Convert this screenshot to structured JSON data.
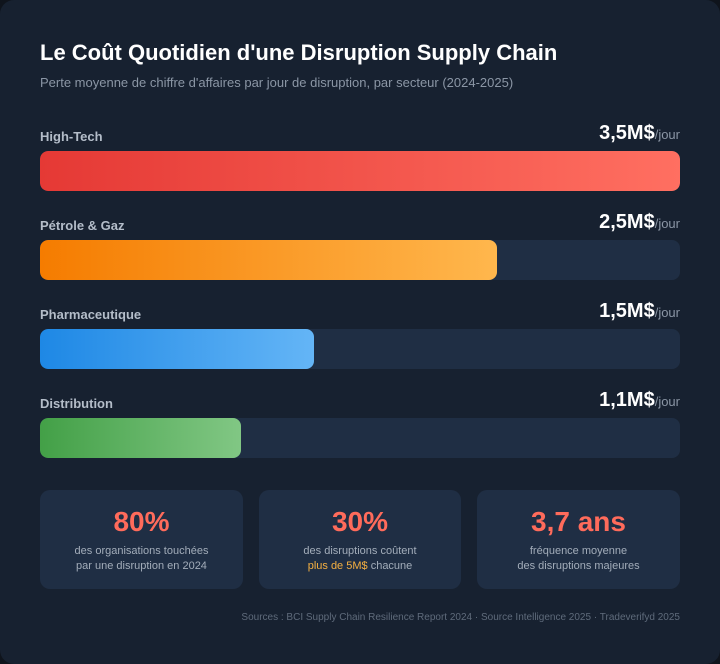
{
  "chart_data": {
    "type": "bar",
    "orientation": "horizontal",
    "title": "Le Coût Quotidien d'une Disruption Supply Chain",
    "subtitle": "Perte moyenne de chiffre d'affaires par jour de disruption, par secteur (2024-2025)",
    "categories": [
      "High-Tech",
      "Pétrole & Gaz",
      "Pharmaceutique",
      "Distribution"
    ],
    "values": [
      3.5,
      2.5,
      1.5,
      1.1
    ],
    "value_labels": [
      "3,5M$",
      "2,5M$",
      "1,5M$",
      "1,1M$"
    ],
    "unit": "/jour",
    "xlim": [
      0,
      3.5
    ],
    "colors": [
      [
        "#e53935",
        "#ff6f61"
      ],
      [
        "#f57c00",
        "#ffb74d"
      ],
      [
        "#1e88e5",
        "#64b5f6"
      ],
      [
        "#43a047",
        "#81c784"
      ]
    ],
    "track_color": "#1f2e44"
  },
  "stats": [
    {
      "value": "80%",
      "line1": "des organisations touchées",
      "line2": "par une disruption en 2024"
    },
    {
      "value": "30%",
      "line1": "des disruptions coûtent",
      "highlight": "plus de 5M$",
      "line2_rest": " chacune"
    },
    {
      "value": "3,7 ans",
      "line1": "fréquence moyenne",
      "line2": "des disruptions majeures"
    }
  ],
  "sources": "Sources : BCI Supply Chain Resilience Report 2024 · Source Intelligence 2025 · Tradeverifyd 2025",
  "colors": {
    "background": "#172130",
    "stat_accent": "#ff6b5b",
    "highlight": "#f5b041"
  }
}
